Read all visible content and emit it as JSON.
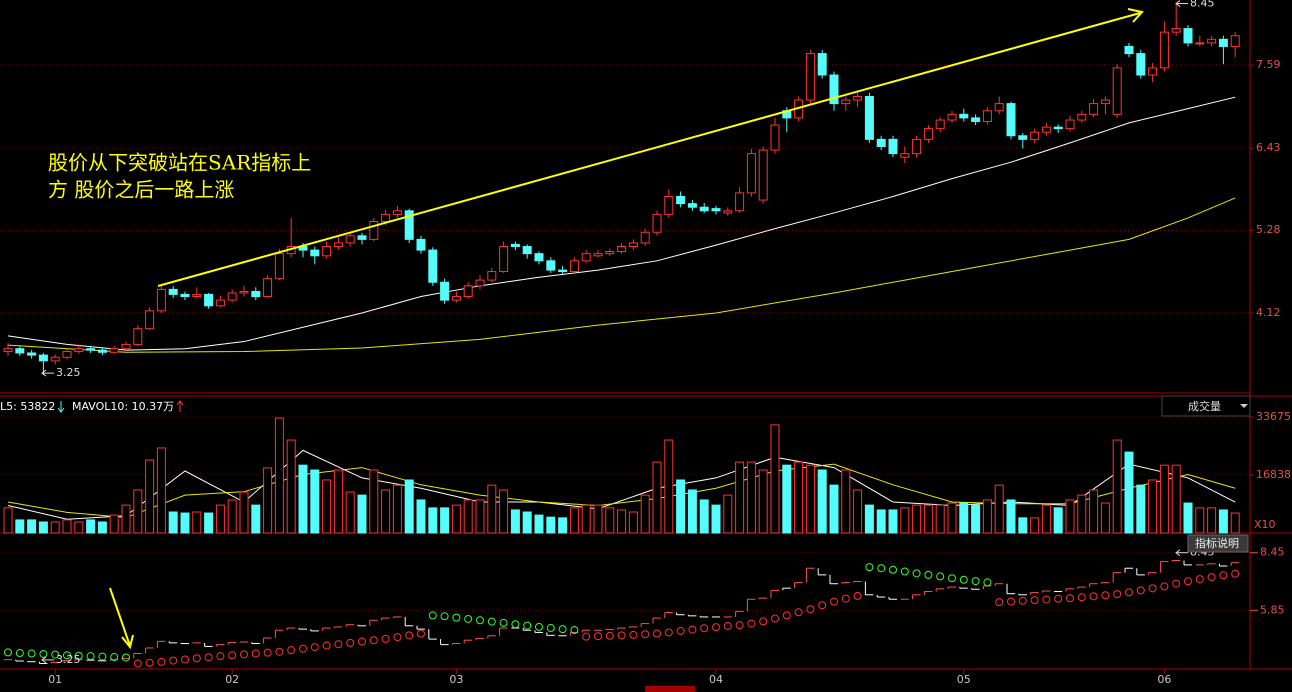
{
  "chart_data": {
    "type": "candlestick",
    "xticks": [
      {
        "value": 4,
        "label": "01"
      },
      {
        "value": 19,
        "label": "02"
      },
      {
        "value": 38,
        "label": "03"
      },
      {
        "value": 60,
        "label": "04"
      },
      {
        "value": 81,
        "label": "05"
      },
      {
        "value": 98,
        "label": "06"
      }
    ],
    "price_panel": {
      "ylim": [
        3.0,
        8.5
      ],
      "yticks": [
        4.12,
        5.28,
        6.43,
        7.59
      ],
      "grid": true,
      "up_color": "#ff3232",
      "down_color": "#54fcfc",
      "low": 3.25,
      "high": 8.45,
      "annotation": [
        "股价从下突破站在SAR指标上",
        "方 股价之后一路上涨"
      ],
      "ohlc": [
        [
          3.58,
          3.7,
          3.52,
          3.62
        ],
        [
          3.62,
          3.65,
          3.52,
          3.56
        ],
        [
          3.56,
          3.6,
          3.48,
          3.53
        ],
        [
          3.53,
          3.56,
          3.25,
          3.45
        ],
        [
          3.45,
          3.54,
          3.4,
          3.5
        ],
        [
          3.5,
          3.62,
          3.47,
          3.58
        ],
        [
          3.58,
          3.68,
          3.55,
          3.62
        ],
        [
          3.62,
          3.66,
          3.56,
          3.6
        ],
        [
          3.6,
          3.63,
          3.53,
          3.57
        ],
        [
          3.57,
          3.66,
          3.55,
          3.62
        ],
        [
          3.62,
          3.72,
          3.6,
          3.68
        ],
        [
          3.68,
          3.95,
          3.66,
          3.9
        ],
        [
          3.9,
          4.2,
          3.88,
          4.15
        ],
        [
          4.15,
          4.52,
          4.12,
          4.45
        ],
        [
          4.45,
          4.5,
          4.33,
          4.38
        ],
        [
          4.38,
          4.42,
          4.3,
          4.35
        ],
        [
          4.35,
          4.48,
          4.32,
          4.38
        ],
        [
          4.38,
          4.4,
          4.18,
          4.22
        ],
        [
          4.22,
          4.36,
          4.2,
          4.3
        ],
        [
          4.3,
          4.45,
          4.27,
          4.4
        ],
        [
          4.4,
          4.5,
          4.35,
          4.42
        ],
        [
          4.42,
          4.48,
          4.3,
          4.35
        ],
        [
          4.35,
          4.65,
          4.33,
          4.6
        ],
        [
          4.6,
          5.02,
          4.58,
          4.95
        ],
        [
          4.95,
          5.45,
          4.9,
          5.05
        ],
        [
          5.05,
          5.1,
          4.9,
          5.0
        ],
        [
          5.0,
          5.05,
          4.8,
          4.92
        ],
        [
          4.92,
          5.12,
          4.88,
          5.05
        ],
        [
          5.05,
          5.18,
          5.0,
          5.1
        ],
        [
          5.1,
          5.26,
          5.05,
          5.2
        ],
        [
          5.2,
          5.24,
          5.08,
          5.15
        ],
        [
          5.15,
          5.45,
          5.12,
          5.4
        ],
        [
          5.4,
          5.56,
          5.35,
          5.5
        ],
        [
          5.5,
          5.62,
          5.45,
          5.55
        ],
        [
          5.55,
          5.58,
          5.1,
          5.15
        ],
        [
          5.15,
          5.2,
          4.95,
          5.0
        ],
        [
          5.0,
          5.04,
          4.5,
          4.55
        ],
        [
          4.55,
          4.6,
          4.25,
          4.3
        ],
        [
          4.3,
          4.42,
          4.27,
          4.35
        ],
        [
          4.35,
          4.55,
          4.32,
          4.5
        ],
        [
          4.5,
          4.65,
          4.45,
          4.58
        ],
        [
          4.58,
          4.75,
          4.55,
          4.7
        ],
        [
          4.7,
          5.12,
          4.68,
          5.05
        ],
        [
          5.08,
          5.12,
          5.0,
          5.05
        ],
        [
          5.05,
          5.08,
          4.88,
          4.95
        ],
        [
          4.95,
          4.98,
          4.8,
          4.85
        ],
        [
          4.85,
          4.9,
          4.68,
          4.72
        ],
        [
          4.72,
          4.78,
          4.66,
          4.7
        ],
        [
          4.7,
          4.9,
          4.68,
          4.85
        ],
        [
          4.85,
          5.0,
          4.82,
          4.95
        ],
        [
          4.92,
          5.0,
          4.9,
          4.95
        ],
        [
          4.95,
          5.02,
          4.92,
          4.98
        ],
        [
          4.98,
          5.1,
          4.95,
          5.05
        ],
        [
          5.05,
          5.15,
          5.0,
          5.1
        ],
        [
          5.1,
          5.3,
          5.06,
          5.25
        ],
        [
          5.25,
          5.55,
          5.2,
          5.5
        ],
        [
          5.5,
          5.85,
          5.45,
          5.75
        ],
        [
          5.75,
          5.82,
          5.6,
          5.65
        ],
        [
          5.65,
          5.7,
          5.55,
          5.6
        ],
        [
          5.6,
          5.66,
          5.52,
          5.55
        ],
        [
          5.58,
          5.62,
          5.5,
          5.55
        ],
        [
          5.52,
          5.6,
          5.48,
          5.55
        ],
        [
          5.55,
          5.88,
          5.52,
          5.8
        ],
        [
          5.8,
          6.42,
          5.75,
          6.35
        ],
        [
          5.7,
          6.45,
          5.65,
          6.4
        ],
        [
          6.4,
          6.85,
          6.35,
          6.75
        ],
        [
          6.95,
          7.0,
          6.65,
          6.85
        ],
        [
          6.85,
          7.15,
          6.8,
          7.1
        ],
        [
          7.1,
          7.8,
          7.05,
          7.75
        ],
        [
          7.75,
          7.8,
          7.4,
          7.45
        ],
        [
          7.45,
          7.5,
          6.95,
          7.05
        ],
        [
          7.05,
          7.15,
          6.95,
          7.1
        ],
        [
          7.1,
          7.2,
          7.0,
          7.15
        ],
        [
          7.15,
          7.2,
          6.5,
          6.55
        ],
        [
          6.55,
          6.6,
          6.4,
          6.45
        ],
        [
          6.55,
          6.6,
          6.3,
          6.35
        ],
        [
          6.3,
          6.45,
          6.22,
          6.35
        ],
        [
          6.35,
          6.6,
          6.3,
          6.55
        ],
        [
          6.55,
          6.75,
          6.5,
          6.7
        ],
        [
          6.7,
          6.86,
          6.65,
          6.82
        ],
        [
          6.82,
          6.95,
          6.78,
          6.9
        ],
        [
          6.9,
          6.98,
          6.8,
          6.85
        ],
        [
          6.85,
          6.9,
          6.75,
          6.8
        ],
        [
          6.8,
          7.0,
          6.76,
          6.95
        ],
        [
          6.95,
          7.15,
          6.9,
          7.05
        ],
        [
          7.05,
          7.08,
          6.55,
          6.6
        ],
        [
          6.6,
          6.64,
          6.42,
          6.55
        ],
        [
          6.55,
          6.7,
          6.5,
          6.65
        ],
        [
          6.65,
          6.78,
          6.6,
          6.72
        ],
        [
          6.72,
          6.76,
          6.64,
          6.7
        ],
        [
          6.7,
          6.88,
          6.66,
          6.82
        ],
        [
          6.82,
          6.95,
          6.78,
          6.9
        ],
        [
          6.9,
          7.12,
          6.86,
          7.05
        ],
        [
          7.05,
          7.15,
          6.9,
          7.1
        ],
        [
          6.9,
          7.6,
          6.85,
          7.55
        ],
        [
          7.85,
          7.9,
          7.7,
          7.75
        ],
        [
          7.75,
          7.8,
          7.4,
          7.45
        ],
        [
          7.45,
          7.62,
          7.35,
          7.55
        ],
        [
          7.55,
          8.2,
          7.5,
          8.05
        ],
        [
          8.05,
          8.45,
          8.0,
          8.1
        ],
        [
          8.1,
          8.15,
          7.85,
          7.9
        ],
        [
          7.9,
          8.0,
          7.85,
          7.9
        ],
        [
          7.9,
          8.0,
          7.85,
          7.95
        ],
        [
          7.95,
          8.0,
          7.6,
          7.85
        ],
        [
          7.85,
          8.05,
          7.7,
          8.0
        ]
      ],
      "ma_lines": [
        {
          "color": "#ffffff",
          "x": [
            0,
            5,
            10,
            15,
            20,
            25,
            30,
            35,
            40,
            45,
            50,
            55,
            60,
            65,
            70,
            75,
            80,
            85,
            90,
            95,
            100,
            104
          ],
          "values": [
            3.8,
            3.68,
            3.6,
            3.62,
            3.72,
            3.92,
            4.12,
            4.35,
            4.5,
            4.62,
            4.72,
            4.85,
            5.07,
            5.3,
            5.52,
            5.75,
            6.0,
            6.23,
            6.5,
            6.78,
            6.98,
            7.14
          ]
        },
        {
          "color": "#e8e800",
          "x": [
            0,
            10,
            20,
            30,
            40,
            50,
            60,
            70,
            80,
            90,
            95,
            100,
            104
          ],
          "values": [
            3.67,
            3.57,
            3.58,
            3.63,
            3.75,
            3.95,
            4.12,
            4.4,
            4.7,
            5.0,
            5.15,
            5.45,
            5.73
          ]
        }
      ]
    },
    "volume_panel": {
      "header": [
        "L5: 53822",
        "MAVOL10: 10.37万"
      ],
      "selector": "成交量",
      "unit": "X10",
      "ylim": [
        0,
        39500
      ],
      "yticks": [
        16838,
        33675
      ],
      "values": [
        7300,
        3800,
        3800,
        3200,
        3200,
        3800,
        3200,
        3800,
        3200,
        5200,
        8100,
        12500,
        21200,
        24700,
        6100,
        5800,
        6100,
        5800,
        8100,
        9600,
        11900,
        8100,
        18900,
        33400,
        27000,
        19700,
        18300,
        15400,
        18300,
        11900,
        11000,
        18300,
        12500,
        13900,
        15400,
        9600,
        7300,
        7300,
        8100,
        9600,
        9600,
        13900,
        12500,
        6700,
        6100,
        5200,
        4600,
        4400,
        7300,
        8100,
        8100,
        7300,
        6700,
        6100,
        11000,
        20600,
        27000,
        15400,
        12500,
        9600,
        8100,
        11000,
        20600,
        20600,
        18300,
        31400,
        19700,
        20600,
        19700,
        18300,
        13900,
        18300,
        12500,
        8100,
        6700,
        6700,
        7300,
        8100,
        8100,
        8100,
        8700,
        8700,
        8100,
        9600,
        13900,
        9600,
        4400,
        4400,
        8100,
        7300,
        9600,
        11000,
        12500,
        8700,
        27000,
        23500,
        13900,
        15400,
        19700,
        19700,
        8700,
        7300,
        7300,
        6700,
        5800
      ],
      "ma_lines": [
        {
          "color": "#ffffff",
          "x": [
            0,
            5,
            10,
            15,
            20,
            25,
            30,
            35,
            40,
            45,
            50,
            55,
            60,
            65,
            70,
            75,
            80,
            85,
            90,
            95,
            100,
            104
          ],
          "values": [
            8000,
            4000,
            5000,
            18000,
            9000,
            24000,
            16000,
            13000,
            9000,
            9000,
            7000,
            13000,
            16000,
            22000,
            19000,
            9000,
            8000,
            9000,
            8000,
            20000,
            16000,
            9000
          ]
        },
        {
          "color": "#e8e800",
          "x": [
            0,
            5,
            10,
            15,
            20,
            25,
            30,
            35,
            40,
            45,
            50,
            55,
            60,
            65,
            70,
            75,
            80,
            85,
            90,
            95,
            100,
            104
          ],
          "values": [
            9000,
            6000,
            4500,
            11000,
            12000,
            17000,
            19000,
            14000,
            11000,
            9000,
            8000,
            10000,
            13000,
            18000,
            20000,
            14000,
            9000,
            8500,
            8500,
            13000,
            17000,
            13000
          ]
        }
      ]
    },
    "sar_panel": {
      "button": "指标说明",
      "ylim": [
        3.2,
        9.25
      ],
      "yticks": [
        5.85,
        8.45
      ],
      "up_color": "#ff3030",
      "down_color": "#30ff30",
      "values": [
        3.95,
        3.92,
        3.9,
        3.88,
        3.85,
        3.82,
        3.8,
        3.78,
        3.76,
        3.74,
        3.72,
        3.45,
        3.48,
        3.52,
        3.58,
        3.63,
        3.68,
        3.73,
        3.78,
        3.82,
        3.86,
        3.9,
        3.94,
        3.98,
        4.05,
        4.12,
        4.19,
        4.26,
        4.32,
        4.38,
        4.44,
        4.5,
        4.56,
        4.64,
        4.72,
        4.8,
        5.62,
        5.58,
        5.52,
        5.46,
        5.4,
        5.34,
        5.28,
        5.22,
        5.16,
        5.1,
        5.05,
        5.0,
        4.96,
        4.66,
        4.68,
        4.7,
        4.72,
        4.74,
        4.77,
        4.8,
        4.85,
        4.92,
        4.98,
        5.04,
        5.09,
        5.14,
        5.18,
        5.25,
        5.35,
        5.48,
        5.62,
        5.76,
        5.9,
        6.08,
        6.24,
        6.38,
        6.5,
        7.8,
        7.75,
        7.68,
        7.6,
        7.52,
        7.45,
        7.38,
        7.3,
        7.23,
        7.17,
        7.11,
        6.22,
        6.25,
        6.28,
        6.31,
        6.34,
        6.37,
        6.4,
        6.44,
        6.48,
        6.53,
        6.58,
        6.66,
        6.75,
        6.84,
        6.93,
        7.05,
        7.16,
        7.26,
        7.35,
        7.43,
        7.5
      ]
    }
  }
}
